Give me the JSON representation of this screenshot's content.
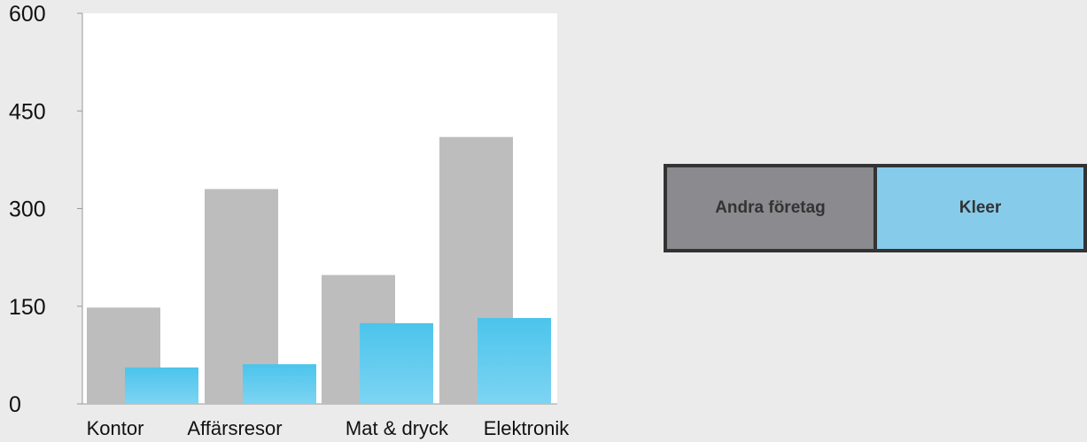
{
  "chart_data": {
    "type": "bar",
    "categories": [
      "Kontor",
      "Affärsresor",
      "Mat & dryck",
      "Elektronik"
    ],
    "series": [
      {
        "name": "Andra företag",
        "values": [
          148,
          330,
          198,
          410
        ],
        "color": "#bdbdbd"
      },
      {
        "name": "Kleer",
        "values": [
          56,
          61,
          124,
          132
        ],
        "color": "#5bc8ec"
      }
    ],
    "yticks": [
      0,
      150,
      300,
      450,
      600
    ],
    "ylim": [
      0,
      600
    ],
    "title": "",
    "xlabel": "",
    "ylabel": "",
    "grid": false,
    "legend_position": "right"
  },
  "legend": {
    "items": [
      {
        "label": "Andra företag",
        "color": "#8a8a8f"
      },
      {
        "label": "Kleer",
        "color": "#87cbeb"
      }
    ]
  }
}
